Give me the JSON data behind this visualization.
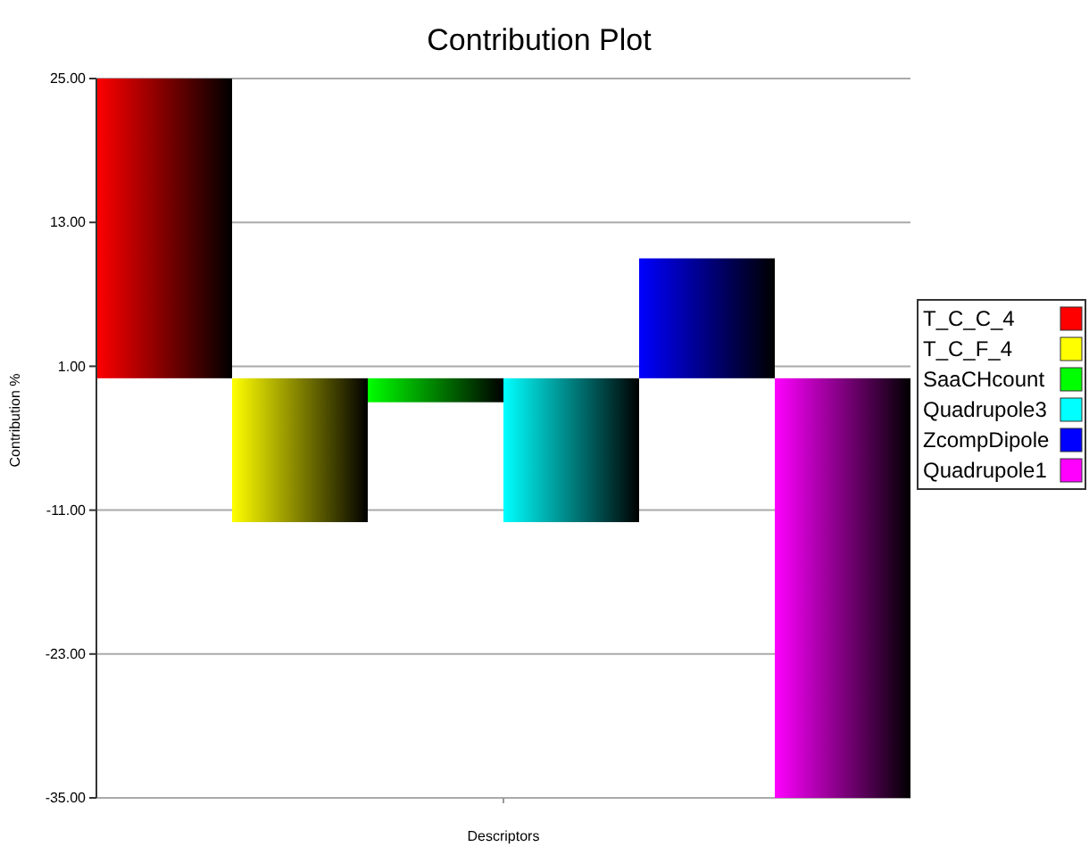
{
  "chart_data": {
    "type": "bar",
    "title": "Contribution Plot",
    "xlabel": "Descriptors",
    "ylabel": "Contribution %",
    "categories": [
      null,
      null,
      null,
      null,
      null,
      null
    ],
    "series": [
      {
        "name": "T_C_C_4",
        "color": "#ff0000",
        "values": [
          25,
          null,
          null,
          null,
          null,
          null
        ]
      },
      {
        "name": "T_C_F_4",
        "color": "#ffff00",
        "values": [
          null,
          -12,
          null,
          null,
          null,
          null
        ]
      },
      {
        "name": "SaaCHcount",
        "color": "#00ff00",
        "values": [
          null,
          null,
          -2,
          null,
          null,
          null
        ]
      },
      {
        "name": "Quadrupole3",
        "color": "#00ffff",
        "values": [
          null,
          null,
          null,
          -12,
          null,
          null
        ]
      },
      {
        "name": "ZcompDipole",
        "color": "#0000ff",
        "values": [
          null,
          null,
          null,
          null,
          10,
          null
        ]
      },
      {
        "name": "Quadrupole1",
        "color": "#ff00ff",
        "values": [
          null,
          null,
          null,
          null,
          null,
          -35
        ]
      }
    ],
    "ylim": [
      -35,
      25
    ],
    "yticks": [
      {
        "value": 25,
        "label": "25.00"
      },
      {
        "value": 13,
        "label": "13.00"
      },
      {
        "value": 1,
        "label": "1.00"
      },
      {
        "value": -11,
        "label": "-11.00"
      },
      {
        "value": -23,
        "label": "-23.00"
      },
      {
        "value": -35,
        "label": "-35.00"
      }
    ],
    "grid": "y",
    "legend": "right"
  }
}
